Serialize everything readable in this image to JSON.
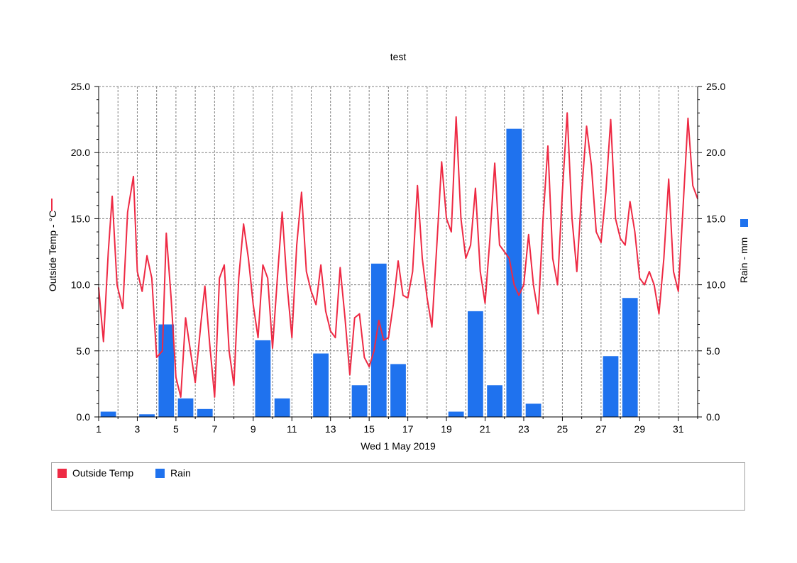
{
  "chart_data": {
    "type": "bar+line",
    "title": "test",
    "xlabel": "Wed 1 May 2019",
    "x_tick_labels": [
      "1",
      "3",
      "5",
      "7",
      "9",
      "11",
      "13",
      "15",
      "17",
      "19",
      "21",
      "23",
      "25",
      "27",
      "29",
      "31"
    ],
    "x_range_days": [
      1,
      32
    ],
    "y_left": {
      "label": "Outside Temp - °C",
      "lim": [
        0,
        25
      ],
      "ticks": [
        "0.0",
        "5.0",
        "10.0",
        "15.0",
        "20.0",
        "25.0"
      ]
    },
    "y_right": {
      "label": "Rain - mm",
      "lim": [
        0,
        25
      ],
      "ticks": [
        "0.0",
        "5.0",
        "10.0",
        "15.0",
        "20.0",
        "25.0"
      ]
    },
    "grid": true,
    "legend_position": "bottom",
    "series": [
      {
        "name": "Outside Temp",
        "type": "line",
        "axis": "left",
        "color": "#ee2a44",
        "x": [
          1.0,
          1.25,
          1.5,
          1.7,
          1.95,
          2.25,
          2.5,
          2.8,
          3.0,
          3.25,
          3.5,
          3.75,
          4.0,
          4.3,
          4.5,
          4.75,
          5.0,
          5.25,
          5.5,
          5.75,
          6.0,
          6.3,
          6.5,
          6.75,
          7.0,
          7.25,
          7.5,
          7.75,
          8.0,
          8.25,
          8.5,
          8.75,
          9.0,
          9.25,
          9.5,
          9.75,
          10.0,
          10.25,
          10.5,
          10.75,
          11.0,
          11.25,
          11.5,
          11.75,
          12.0,
          12.25,
          12.5,
          12.75,
          13.0,
          13.25,
          13.5,
          13.75,
          14.0,
          14.25,
          14.5,
          14.75,
          15.0,
          15.25,
          15.5,
          15.75,
          16.0,
          16.25,
          16.5,
          16.75,
          17.0,
          17.25,
          17.5,
          17.75,
          18.0,
          18.25,
          18.5,
          18.75,
          19.0,
          19.25,
          19.5,
          19.75,
          20.0,
          20.25,
          20.5,
          20.75,
          21.0,
          21.25,
          21.5,
          21.75,
          22.0,
          22.25,
          22.5,
          22.75,
          23.0,
          23.25,
          23.5,
          23.75,
          24.0,
          24.25,
          24.5,
          24.75,
          25.0,
          25.25,
          25.5,
          25.75,
          26.0,
          26.25,
          26.5,
          26.75,
          27.0,
          27.25,
          27.5,
          27.75,
          28.0,
          28.25,
          28.5,
          28.75,
          29.0,
          29.25,
          29.5,
          29.75,
          30.0,
          30.25,
          30.5,
          30.75,
          31.0,
          31.25,
          31.5,
          31.75,
          32.0
        ],
        "y": [
          9.8,
          5.7,
          12.5,
          16.7,
          10.0,
          8.2,
          15.5,
          18.2,
          11.0,
          9.5,
          12.2,
          10.5,
          4.5,
          5.0,
          13.9,
          9.0,
          3.0,
          1.5,
          7.5,
          5.0,
          2.6,
          7.2,
          9.9,
          5.5,
          1.5,
          10.5,
          11.5,
          5.0,
          2.4,
          10.5,
          14.6,
          12.0,
          8.5,
          6.0,
          11.5,
          10.5,
          5.2,
          10.5,
          15.5,
          10.0,
          6.0,
          13.0,
          17.0,
          11.0,
          9.5,
          8.5,
          11.5,
          8.0,
          6.5,
          6.0,
          11.3,
          7.5,
          3.2,
          7.5,
          7.8,
          4.5,
          3.8,
          5.0,
          7.3,
          5.8,
          6.0,
          8.5,
          11.8,
          9.2,
          9.0,
          11.0,
          17.5,
          12.0,
          9.0,
          6.8,
          13.0,
          19.3,
          15.0,
          14.0,
          22.7,
          15.0,
          12.0,
          13.0,
          17.3,
          11.0,
          8.6,
          13.5,
          19.2,
          13.0,
          12.5,
          12.0,
          10.0,
          9.2,
          10.0,
          13.8,
          10.0,
          7.8,
          15.0,
          20.5,
          12.0,
          10.0,
          17.0,
          23.0,
          15.0,
          11.0,
          17.0,
          22.0,
          19.0,
          14.0,
          13.2,
          17.0,
          22.5,
          15.0,
          13.5,
          13.0,
          16.3,
          14.0,
          10.5,
          10.0,
          11.0,
          10.0,
          7.8,
          12.0,
          18.0,
          11.0,
          9.5,
          16.0,
          22.6,
          17.5,
          16.5
        ]
      },
      {
        "name": "Rain",
        "type": "bar",
        "axis": "right",
        "color": "#1f72ee",
        "days": [
          1,
          3,
          4,
          5,
          6,
          9,
          10,
          12,
          14,
          15,
          16,
          19,
          20,
          21,
          22,
          23,
          27,
          28
        ],
        "values": [
          0.4,
          0.2,
          7.0,
          1.4,
          0.6,
          5.8,
          1.4,
          4.8,
          2.4,
          11.6,
          4.0,
          0.4,
          8.0,
          2.4,
          21.8,
          1.0,
          4.6,
          9.0
        ]
      }
    ]
  }
}
